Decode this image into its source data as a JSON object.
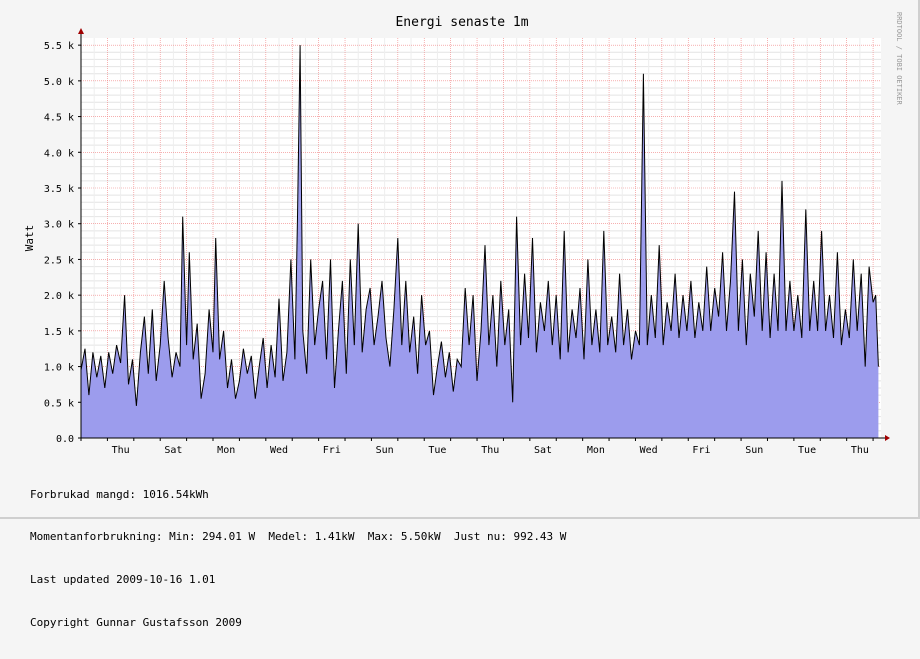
{
  "chart_data": {
    "type": "area",
    "title": "Energi senaste 1m",
    "ylabel": "Watt",
    "xlabel": "",
    "ylim": [
      0,
      5600
    ],
    "y_ticks": [
      {
        "value": 0,
        "label": "0.0"
      },
      {
        "value": 500,
        "label": "0.5 k"
      },
      {
        "value": 1000,
        "label": "1.0 k"
      },
      {
        "value": 1500,
        "label": "1.5 k"
      },
      {
        "value": 2000,
        "label": "2.0 k"
      },
      {
        "value": 2500,
        "label": "2.5 k"
      },
      {
        "value": 3000,
        "label": "3.0 k"
      },
      {
        "value": 3500,
        "label": "3.5 k"
      },
      {
        "value": 4000,
        "label": "4.0 k"
      },
      {
        "value": 4500,
        "label": "4.5 k"
      },
      {
        "value": 5000,
        "label": "5.0 k"
      },
      {
        "value": 5500,
        "label": "5.5 k"
      }
    ],
    "x_ticks": [
      {
        "day": 1.5,
        "label": "Thu"
      },
      {
        "day": 3.5,
        "label": "Sat"
      },
      {
        "day": 5.5,
        "label": "Mon"
      },
      {
        "day": 7.5,
        "label": "Wed"
      },
      {
        "day": 9.5,
        "label": "Fri"
      },
      {
        "day": 11.5,
        "label": "Sun"
      },
      {
        "day": 13.5,
        "label": "Tue"
      },
      {
        "day": 15.5,
        "label": "Thu"
      },
      {
        "day": 17.5,
        "label": "Sat"
      },
      {
        "day": 19.5,
        "label": "Mon"
      },
      {
        "day": 21.5,
        "label": "Wed"
      },
      {
        "day": 23.5,
        "label": "Fri"
      },
      {
        "day": 25.5,
        "label": "Sun"
      },
      {
        "day": 27.5,
        "label": "Tue"
      },
      {
        "day": 29.5,
        "label": "Thu"
      }
    ],
    "x_range_days": [
      0,
      30.3
    ],
    "grid": true,
    "fill_color": "#9c9ced",
    "line_color": "#000000",
    "series": [
      {
        "values": [
          [
            0.0,
            950
          ],
          [
            0.15,
            1250
          ],
          [
            0.3,
            600
          ],
          [
            0.45,
            1200
          ],
          [
            0.6,
            850
          ],
          [
            0.75,
            1150
          ],
          [
            0.9,
            700
          ],
          [
            1.05,
            1200
          ],
          [
            1.2,
            900
          ],
          [
            1.35,
            1300
          ],
          [
            1.5,
            1050
          ],
          [
            1.65,
            2000
          ],
          [
            1.8,
            750
          ],
          [
            1.95,
            1100
          ],
          [
            2.1,
            450
          ],
          [
            2.25,
            1200
          ],
          [
            2.4,
            1700
          ],
          [
            2.55,
            900
          ],
          [
            2.7,
            1800
          ],
          [
            2.85,
            800
          ],
          [
            3.0,
            1300
          ],
          [
            3.15,
            2200
          ],
          [
            3.3,
            1400
          ],
          [
            3.45,
            850
          ],
          [
            3.6,
            1200
          ],
          [
            3.75,
            1000
          ],
          [
            3.85,
            3100
          ],
          [
            4.0,
            1300
          ],
          [
            4.1,
            2600
          ],
          [
            4.25,
            1100
          ],
          [
            4.4,
            1600
          ],
          [
            4.55,
            550
          ],
          [
            4.7,
            900
          ],
          [
            4.85,
            1800
          ],
          [
            5.0,
            1200
          ],
          [
            5.1,
            2800
          ],
          [
            5.25,
            1100
          ],
          [
            5.4,
            1500
          ],
          [
            5.55,
            700
          ],
          [
            5.7,
            1100
          ],
          [
            5.85,
            550
          ],
          [
            6.0,
            800
          ],
          [
            6.15,
            1250
          ],
          [
            6.3,
            900
          ],
          [
            6.45,
            1150
          ],
          [
            6.6,
            550
          ],
          [
            6.75,
            1000
          ],
          [
            6.9,
            1400
          ],
          [
            7.05,
            700
          ],
          [
            7.2,
            1300
          ],
          [
            7.35,
            850
          ],
          [
            7.5,
            1950
          ],
          [
            7.65,
            800
          ],
          [
            7.8,
            1200
          ],
          [
            7.95,
            2500
          ],
          [
            8.1,
            1100
          ],
          [
            8.2,
            3100
          ],
          [
            8.3,
            5500
          ],
          [
            8.4,
            1500
          ],
          [
            8.55,
            900
          ],
          [
            8.7,
            2500
          ],
          [
            8.85,
            1300
          ],
          [
            9.0,
            1800
          ],
          [
            9.15,
            2200
          ],
          [
            9.3,
            1100
          ],
          [
            9.45,
            2500
          ],
          [
            9.6,
            700
          ],
          [
            9.75,
            1500
          ],
          [
            9.9,
            2200
          ],
          [
            10.05,
            900
          ],
          [
            10.2,
            2500
          ],
          [
            10.35,
            1300
          ],
          [
            10.5,
            3000
          ],
          [
            10.65,
            1200
          ],
          [
            10.8,
            1800
          ],
          [
            10.95,
            2100
          ],
          [
            11.1,
            1300
          ],
          [
            11.25,
            1700
          ],
          [
            11.4,
            2200
          ],
          [
            11.55,
            1400
          ],
          [
            11.7,
            1000
          ],
          [
            11.85,
            1800
          ],
          [
            12.0,
            2800
          ],
          [
            12.15,
            1300
          ],
          [
            12.3,
            2200
          ],
          [
            12.45,
            1200
          ],
          [
            12.6,
            1700
          ],
          [
            12.75,
            900
          ],
          [
            12.9,
            2000
          ],
          [
            13.05,
            1300
          ],
          [
            13.2,
            1500
          ],
          [
            13.35,
            600
          ],
          [
            13.5,
            1000
          ],
          [
            13.65,
            1350
          ],
          [
            13.8,
            850
          ],
          [
            13.95,
            1200
          ],
          [
            14.1,
            650
          ],
          [
            14.25,
            1100
          ],
          [
            14.4,
            1000
          ],
          [
            14.55,
            2100
          ],
          [
            14.7,
            1300
          ],
          [
            14.85,
            2000
          ],
          [
            15.0,
            800
          ],
          [
            15.15,
            1500
          ],
          [
            15.3,
            2700
          ],
          [
            15.45,
            1300
          ],
          [
            15.6,
            2000
          ],
          [
            15.75,
            1000
          ],
          [
            15.9,
            2200
          ],
          [
            16.05,
            1300
          ],
          [
            16.2,
            1800
          ],
          [
            16.35,
            500
          ],
          [
            16.5,
            3100
          ],
          [
            16.65,
            1300
          ],
          [
            16.8,
            2300
          ],
          [
            16.95,
            1400
          ],
          [
            17.1,
            2800
          ],
          [
            17.25,
            1200
          ],
          [
            17.4,
            1900
          ],
          [
            17.55,
            1500
          ],
          [
            17.7,
            2200
          ],
          [
            17.85,
            1300
          ],
          [
            18.0,
            2000
          ],
          [
            18.15,
            1100
          ],
          [
            18.3,
            2900
          ],
          [
            18.45,
            1200
          ],
          [
            18.6,
            1800
          ],
          [
            18.75,
            1400
          ],
          [
            18.9,
            2100
          ],
          [
            19.05,
            1100
          ],
          [
            19.2,
            2500
          ],
          [
            19.35,
            1300
          ],
          [
            19.5,
            1800
          ],
          [
            19.65,
            1200
          ],
          [
            19.8,
            2900
          ],
          [
            19.95,
            1300
          ],
          [
            20.1,
            1700
          ],
          [
            20.25,
            1200
          ],
          [
            20.4,
            2300
          ],
          [
            20.55,
            1300
          ],
          [
            20.7,
            1800
          ],
          [
            20.85,
            1100
          ],
          [
            21.0,
            1500
          ],
          [
            21.15,
            1300
          ],
          [
            21.3,
            5100
          ],
          [
            21.45,
            1300
          ],
          [
            21.6,
            2000
          ],
          [
            21.75,
            1400
          ],
          [
            21.9,
            2700
          ],
          [
            22.05,
            1300
          ],
          [
            22.2,
            1900
          ],
          [
            22.35,
            1500
          ],
          [
            22.5,
            2300
          ],
          [
            22.65,
            1400
          ],
          [
            22.8,
            2000
          ],
          [
            22.95,
            1500
          ],
          [
            23.1,
            2200
          ],
          [
            23.25,
            1400
          ],
          [
            23.4,
            1900
          ],
          [
            23.55,
            1500
          ],
          [
            23.7,
            2400
          ],
          [
            23.85,
            1500
          ],
          [
            24.0,
            2100
          ],
          [
            24.15,
            1700
          ],
          [
            24.3,
            2600
          ],
          [
            24.45,
            1500
          ],
          [
            24.6,
            2200
          ],
          [
            24.75,
            3450
          ],
          [
            24.9,
            1500
          ],
          [
            25.05,
            2500
          ],
          [
            25.2,
            1300
          ],
          [
            25.35,
            2300
          ],
          [
            25.5,
            1700
          ],
          [
            25.65,
            2900
          ],
          [
            25.8,
            1500
          ],
          [
            25.95,
            2600
          ],
          [
            26.1,
            1400
          ],
          [
            26.25,
            2300
          ],
          [
            26.4,
            1500
          ],
          [
            26.55,
            3600
          ],
          [
            26.7,
            1500
          ],
          [
            26.85,
            2200
          ],
          [
            27.0,
            1500
          ],
          [
            27.15,
            2000
          ],
          [
            27.3,
            1400
          ],
          [
            27.45,
            3200
          ],
          [
            27.6,
            1500
          ],
          [
            27.75,
            2200
          ],
          [
            27.9,
            1500
          ],
          [
            28.05,
            2900
          ],
          [
            28.2,
            1500
          ],
          [
            28.35,
            2000
          ],
          [
            28.5,
            1400
          ],
          [
            28.65,
            2600
          ],
          [
            28.8,
            1300
          ],
          [
            28.95,
            1800
          ],
          [
            29.1,
            1400
          ],
          [
            29.25,
            2500
          ],
          [
            29.4,
            1500
          ],
          [
            29.55,
            2300
          ],
          [
            29.7,
            1000
          ],
          [
            29.85,
            2400
          ],
          [
            30.0,
            1900
          ],
          [
            30.1,
            2000
          ],
          [
            30.2,
            1000
          ]
        ]
      }
    ]
  },
  "watermark": "RRDTOOL / TOBI OETIKER",
  "stats": {
    "line1": "Forbrukad mangd: 1016.54kWh",
    "line2": "Momentanforbrukning: Min: 294.01 W  Medel: 1.41kW  Max: 5.50kW  Just nu: 992.43 W",
    "line3": "Last updated 2009-10-16 1.01",
    "line4": "Copyright Gunnar Gustafsson 2009"
  }
}
